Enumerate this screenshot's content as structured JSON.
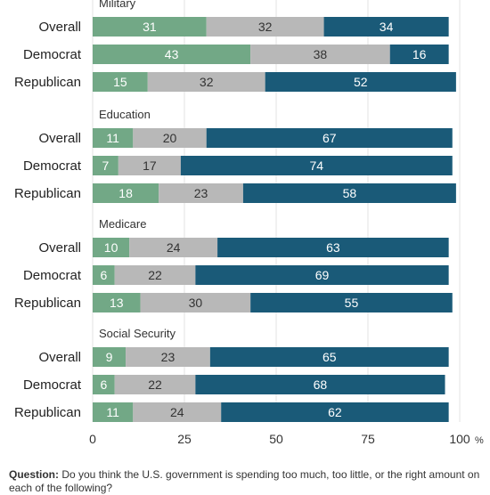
{
  "chart_data": {
    "type": "bar",
    "orientation": "horizontal",
    "stacked": true,
    "unit": "%",
    "xlim": [
      0,
      100
    ],
    "xticks": [
      "0",
      "25",
      "50",
      "75",
      "100"
    ],
    "xtick_unit": "%",
    "grid": true,
    "legend": "none",
    "colors": {
      "too_much": "#72a886",
      "about_right": "#b8b8b8",
      "too_little": "#1a5a78"
    },
    "segment_order": [
      "too_much",
      "about_right",
      "too_little"
    ],
    "groups": [
      {
        "title": "Military",
        "rows": [
          {
            "label": "Overall",
            "values": [
              31,
              32,
              34
            ]
          },
          {
            "label": "Democrat",
            "values": [
              43,
              38,
              16
            ]
          },
          {
            "label": "Republican",
            "values": [
              15,
              32,
              52
            ]
          }
        ]
      },
      {
        "title": "Education",
        "rows": [
          {
            "label": "Overall",
            "values": [
              11,
              20,
              67
            ]
          },
          {
            "label": "Democrat",
            "values": [
              7,
              17,
              74
            ]
          },
          {
            "label": "Republican",
            "values": [
              18,
              23,
              58
            ]
          }
        ]
      },
      {
        "title": "Medicare",
        "rows": [
          {
            "label": "Overall",
            "values": [
              10,
              24,
              63
            ]
          },
          {
            "label": "Democrat",
            "values": [
              6,
              22,
              69
            ]
          },
          {
            "label": "Republican",
            "values": [
              13,
              30,
              55
            ]
          }
        ]
      },
      {
        "title": "Social Security",
        "rows": [
          {
            "label": "Overall",
            "values": [
              9,
              23,
              65
            ]
          },
          {
            "label": "Democrat",
            "values": [
              6,
              22,
              68
            ]
          },
          {
            "label": "Republican",
            "values": [
              11,
              24,
              62
            ]
          }
        ]
      }
    ]
  },
  "footnote": {
    "question_label": "Question:",
    "question_text": " Do you think the U.S. government is spending too much, too little, or the right amount on each of the following?"
  }
}
